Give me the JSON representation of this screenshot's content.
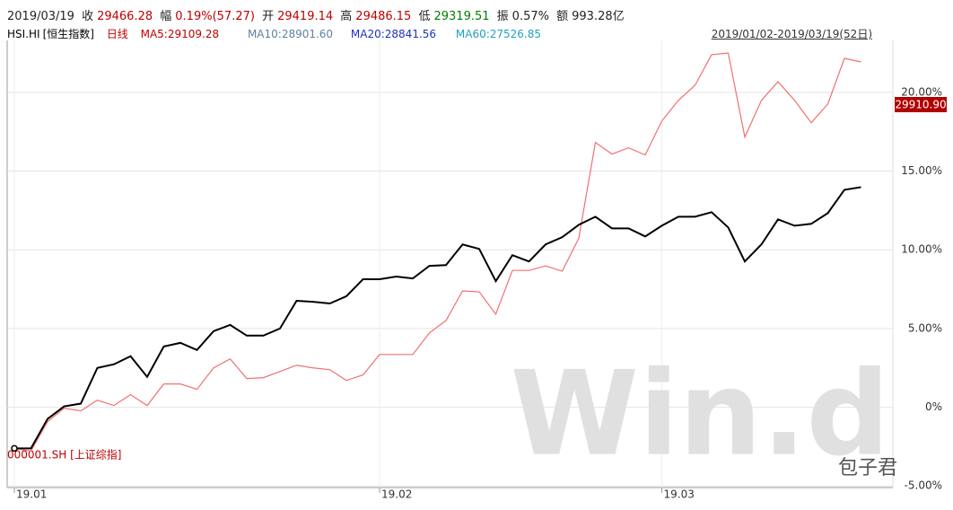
{
  "header": {
    "date": "2019/03/19",
    "close_label": "收",
    "close": "29466.28",
    "change_label": "幅",
    "change": "0.19%(57.27)",
    "open_label": "开",
    "open": "29419.14",
    "high_label": "高",
    "high": "29486.15",
    "low_label": "低",
    "low": "29319.51",
    "amplitude_label": "振",
    "amplitude": "0.57%",
    "amount_label": "额",
    "amount": "993.28亿"
  },
  "legend_bar": {
    "code": "HSI.HI",
    "name": "[恒生指数]",
    "period": "日线",
    "ma5": "MA5:29109.28",
    "ma10": "MA10:28901.60",
    "ma20": "MA20:28841.56",
    "ma60": "MA60:27526.85",
    "range": "2019/01/02-2019/03/19(52日)"
  },
  "compare_label": "000001.SH [上证综指]",
  "price_tag": "29910.90",
  "watermark": "Win.d",
  "wechat": "包子君",
  "chart_data": {
    "type": "line",
    "categories": [
      "19.01",
      null,
      null,
      null,
      null,
      null,
      null,
      null,
      null,
      null,
      null,
      null,
      null,
      null,
      null,
      null,
      null,
      null,
      null,
      null,
      null,
      null,
      "19.02",
      null,
      null,
      null,
      null,
      null,
      null,
      null,
      null,
      null,
      null,
      null,
      null,
      null,
      null,
      null,
      null,
      "19.03",
      null,
      null,
      null,
      null,
      null,
      null,
      null,
      null,
      null,
      null,
      null,
      null
    ],
    "series": [
      {
        "name": "HSI.HI",
        "color": "#000000",
        "values": [
          -2.61,
          -2.61,
          -0.74,
          0.06,
          0.23,
          2.5,
          2.73,
          3.24,
          1.93,
          3.86,
          4.09,
          3.64,
          4.83,
          5.23,
          4.55,
          4.55,
          5.0,
          6.76,
          6.7,
          6.59,
          7.05,
          8.13,
          8.13,
          8.3,
          8.18,
          8.98,
          9.03,
          10.34,
          10.06,
          8.01,
          9.66,
          9.26,
          10.34,
          10.8,
          11.59,
          12.1,
          11.36,
          11.36,
          10.85,
          11.53,
          12.1,
          12.1,
          12.39,
          11.42,
          9.26,
          10.34,
          11.93,
          11.53,
          11.65,
          12.33,
          13.81,
          13.98
        ]
      },
      {
        "name": "000001.SH",
        "color": "#f07070",
        "values": [
          -2.61,
          -2.78,
          -0.91,
          -0.06,
          -0.23,
          0.45,
          0.11,
          0.8,
          0.11,
          1.48,
          1.48,
          1.14,
          2.5,
          3.07,
          1.82,
          1.88,
          2.27,
          2.67,
          2.5,
          2.39,
          1.7,
          2.05,
          3.35,
          3.35,
          3.35,
          4.72,
          5.51,
          7.39,
          7.33,
          5.91,
          8.69,
          8.69,
          8.98,
          8.64,
          10.74,
          16.82,
          16.08,
          16.48,
          16.02,
          18.18,
          19.49,
          20.45,
          22.39,
          22.5,
          17.16,
          19.49,
          20.68,
          19.49,
          18.07,
          19.26,
          22.16,
          21.93
        ]
      }
    ],
    "ylim": [
      -5.1,
      23.3
    ],
    "yticks": [
      {
        "value": -5,
        "label": "-5.00%"
      },
      {
        "value": 0,
        "label": "0%"
      },
      {
        "value": 5,
        "label": "5.00%"
      },
      {
        "value": 10,
        "label": "10.00%"
      },
      {
        "value": 15,
        "label": "15.00%"
      },
      {
        "value": 20,
        "label": "20.00%"
      }
    ],
    "grid": true
  }
}
